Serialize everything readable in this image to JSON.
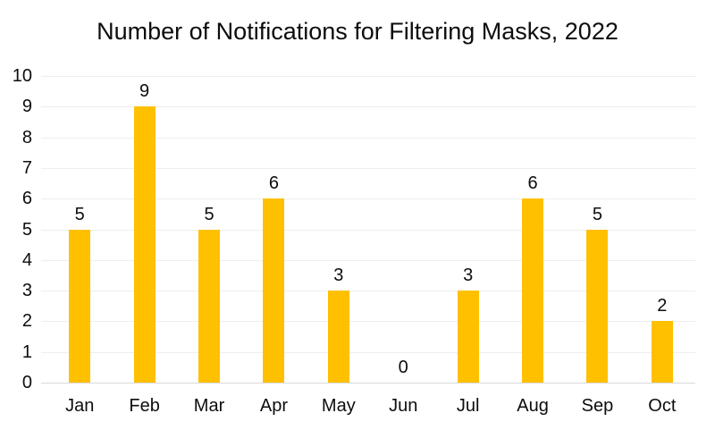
{
  "chart_data": {
    "type": "bar",
    "title": "Number of Notifications for Filtering Masks, 2022",
    "categories": [
      "Jan",
      "Feb",
      "Mar",
      "Apr",
      "May",
      "Jun",
      "Jul",
      "Aug",
      "Sep",
      "Oct"
    ],
    "values": [
      5,
      9,
      5,
      6,
      3,
      0,
      3,
      6,
      5,
      2
    ],
    "xlabel": "",
    "ylabel": "",
    "ylim": [
      0,
      10
    ],
    "yticks": [
      0,
      1,
      2,
      3,
      4,
      5,
      6,
      7,
      8,
      9,
      10
    ],
    "grid": true,
    "legend_position": "none",
    "data_labels": true,
    "colors": {
      "bar": "#ffc000",
      "gridline": "#eeeeee",
      "axis_line": "#d9d9d9",
      "text": "#0d0d0d",
      "background": "#ffffff"
    }
  }
}
